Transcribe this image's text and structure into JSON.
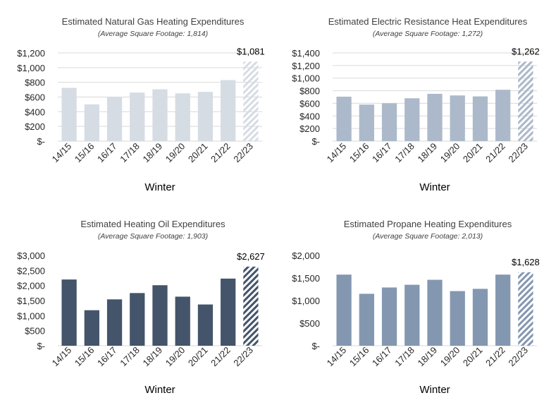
{
  "chart_data": [
    {
      "type": "bar",
      "title": "Estimated Natural Gas Heating Expenditures",
      "subtitle": "(Average Square Footage: 1,814)",
      "xlabel": "Winter",
      "ylabel": "",
      "categories": [
        "14/15",
        "15/16",
        "16/17",
        "17/18",
        "18/19",
        "19/20",
        "20/21",
        "21/22",
        "22/23"
      ],
      "values": [
        725,
        500,
        600,
        660,
        705,
        650,
        670,
        830,
        1081
      ],
      "forecast_category": "22/23",
      "data_labels": {
        "22/23": "$1,081"
      },
      "ylim": [
        0,
        1200
      ],
      "yticks": [
        0,
        200,
        400,
        600,
        800,
        1000,
        1200
      ],
      "ytick_labels": [
        "$-",
        "$200",
        "$400",
        "$600",
        "$800",
        "$1,000",
        "$1,200"
      ],
      "grid": true,
      "bar_color": "#d6dce4",
      "hatch_color": "#d6dce4"
    },
    {
      "type": "bar",
      "title": "Estimated Electric Resistance Heat Expenditures",
      "subtitle": "(Average Square Footage: 1,272)",
      "xlabel": "Winter",
      "ylabel": "",
      "categories": [
        "14/15",
        "15/16",
        "16/17",
        "17/18",
        "18/19",
        "19/20",
        "20/21",
        "21/22",
        "22/23"
      ],
      "values": [
        705,
        580,
        600,
        680,
        750,
        725,
        710,
        815,
        1262
      ],
      "forecast_category": "22/23",
      "data_labels": {
        "22/23": "$1,262"
      },
      "ylim": [
        0,
        1400
      ],
      "yticks": [
        0,
        200,
        400,
        600,
        800,
        1000,
        1200,
        1400
      ],
      "ytick_labels": [
        "$-",
        "$200",
        "$400",
        "$600",
        "$800",
        "$1,000",
        "$1,200",
        "$1,400"
      ],
      "grid": true,
      "bar_color": "#acb9ca",
      "hatch_color": "#acb9ca"
    },
    {
      "type": "bar",
      "title": "Estimated Heating Oil Expenditures",
      "subtitle": "(Average Square Footage: 1,903)",
      "xlabel": "Winter",
      "ylabel": "",
      "categories": [
        "14/15",
        "15/16",
        "16/17",
        "17/18",
        "18/19",
        "19/20",
        "20/21",
        "21/22",
        "22/23"
      ],
      "values": [
        2200,
        1180,
        1540,
        1750,
        2010,
        1630,
        1370,
        2230,
        2627
      ],
      "forecast_category": "22/23",
      "data_labels": {
        "22/23": "$2,627"
      },
      "ylim": [
        0,
        3000
      ],
      "yticks": [
        0,
        500,
        1000,
        1500,
        2000,
        2500,
        3000
      ],
      "ytick_labels": [
        "$-",
        "$500",
        "$1,000",
        "$1,500",
        "$2,000",
        "$2,500",
        "$3,000"
      ],
      "grid": false,
      "bar_color": "#44546a",
      "hatch_color": "#44546a"
    },
    {
      "type": "bar",
      "title": "Estimated Propane Heating Expenditures",
      "subtitle": "(Average Square Footage: 2,013)",
      "xlabel": "Winter",
      "ylabel": "",
      "categories": [
        "14/15",
        "15/16",
        "16/17",
        "17/18",
        "18/19",
        "19/20",
        "20/21",
        "21/22",
        "22/23"
      ],
      "values": [
        1575,
        1150,
        1290,
        1350,
        1460,
        1210,
        1260,
        1575,
        1628
      ],
      "forecast_category": "22/23",
      "data_labels": {
        "22/23": "$1,628"
      },
      "ylim": [
        0,
        2000
      ],
      "yticks": [
        0,
        500,
        1000,
        1500,
        2000
      ],
      "ytick_labels": [
        "$-",
        "$500",
        "$1,000",
        "$1,500",
        "$2,000"
      ],
      "grid": false,
      "bar_color": "#8497b0",
      "hatch_color": "#8497b0"
    }
  ]
}
